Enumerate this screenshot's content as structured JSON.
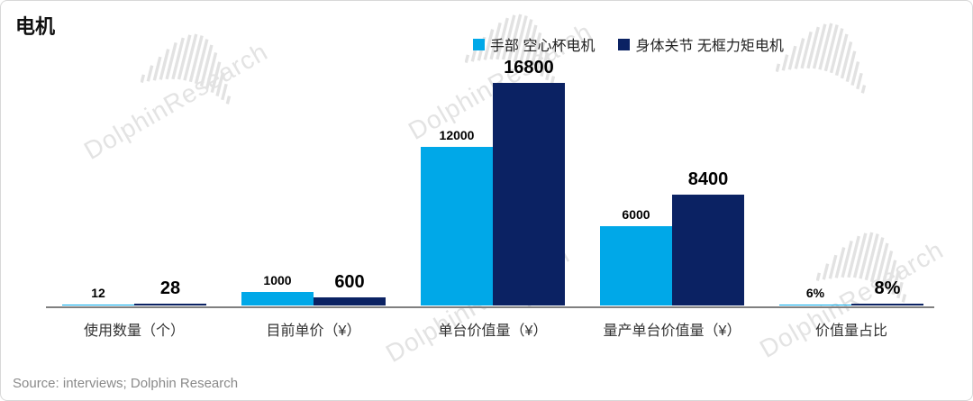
{
  "watermark": {
    "text": "DolphinResearch"
  },
  "source": {
    "text": "Source: interviews; Dolphin Research"
  },
  "chart_data": {
    "type": "bar",
    "title": "电机",
    "categories": [
      "使用数量（个）",
      "目前单价（¥）",
      "单台价值量（¥）",
      "量产单台价值量（¥）",
      "价值量占比"
    ],
    "series": [
      {
        "name": "手部 空心杯电机",
        "color": "#00A8E8",
        "values": [
          12,
          1000,
          12000,
          6000,
          6
        ],
        "labels": [
          "12",
          "1000",
          "12000",
          "6000",
          "6%"
        ]
      },
      {
        "name": "身体关节 无框力矩电机",
        "color": "#0B2263",
        "values": [
          28,
          600,
          16800,
          8400,
          8
        ],
        "labels": [
          "28",
          "600",
          "16800",
          "8400",
          "8%"
        ]
      }
    ],
    "xlabel": "",
    "ylabel": "",
    "ylim": [
      0,
      16800
    ],
    "legend_position": "top",
    "grid": false
  }
}
